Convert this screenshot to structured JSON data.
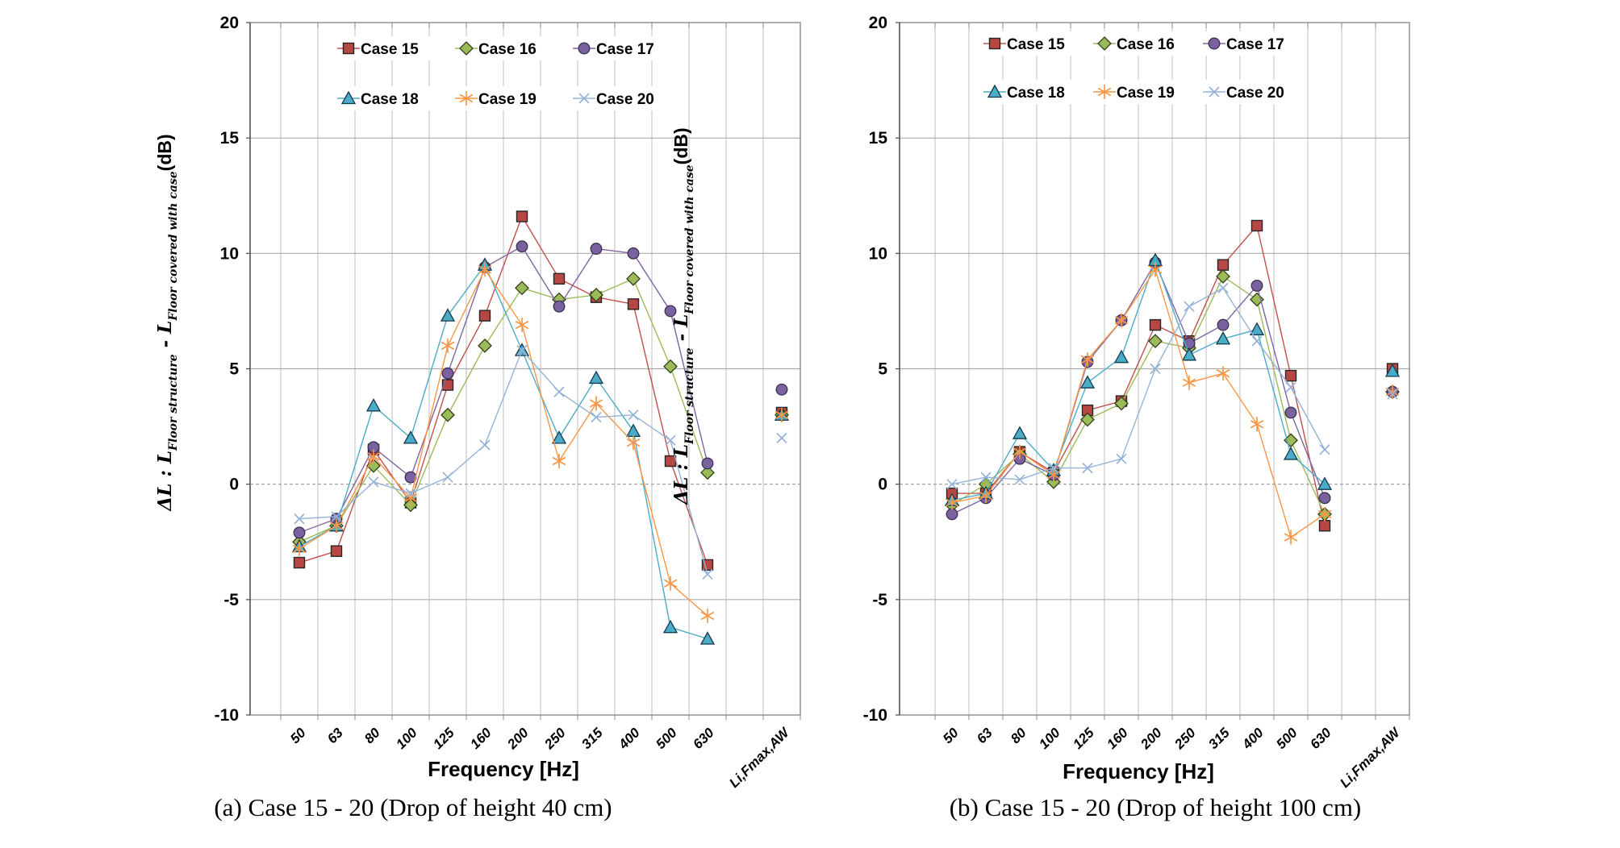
{
  "figure": {
    "background": "#ffffff",
    "caption_a": "(a) Case 15 - 20 (Drop of height 40 cm)",
    "caption_b": "(b) Case 15 - 20 (Drop of height 100 cm)"
  },
  "chart_data": [
    {
      "type": "line",
      "caption": "(a) Case 15 - 20 (Drop of height 40 cm)",
      "xlabel": "Frequency [Hz]",
      "ylabel_parts": {
        "prefix": "ΔL : L",
        "sub1": "Floor structure",
        "mid": " - L",
        "sub2": "Floor covered with case",
        "suffix": "(dB)"
      },
      "ylim": [
        -10,
        20
      ],
      "ytick_step": 5,
      "grid": true,
      "zero_line": "dashed",
      "legend_position": "top-inside",
      "categories": [
        "50",
        "63",
        "80",
        "100",
        "125",
        "160",
        "200",
        "250",
        "315",
        "400",
        "500",
        "630"
      ],
      "li_label": "Li,Fmax,AW",
      "series": [
        {
          "name": "Case 15",
          "marker": "square",
          "color": "#C0504D",
          "fill": "#B84743",
          "edge": "#262626",
          "values": [
            -3.4,
            -2.9,
            1.5,
            -0.8,
            4.3,
            7.3,
            11.6,
            8.9,
            8.1,
            7.8,
            1.0,
            -3.5
          ],
          "li_value": 3.1
        },
        {
          "name": "Case 16",
          "marker": "diamond",
          "color": "#9BBB59",
          "fill": "#9BBB59",
          "edge": "#33401d",
          "values": [
            -2.5,
            -1.8,
            0.8,
            -0.9,
            3.0,
            6.0,
            8.5,
            8.0,
            8.2,
            8.9,
            5.1,
            0.5
          ],
          "li_value": 3.0
        },
        {
          "name": "Case 17",
          "marker": "circle",
          "color": "#8064A2",
          "fill": "#7A62A0",
          "edge": "#3b3050",
          "values": [
            -2.1,
            -1.5,
            1.6,
            0.3,
            4.8,
            9.4,
            10.3,
            7.7,
            10.2,
            10.0,
            7.5,
            0.9
          ],
          "li_value": 4.1
        },
        {
          "name": "Case 18",
          "marker": "triangle",
          "color": "#4BACC6",
          "fill": "#4BACC6",
          "edge": "#16384f",
          "values": [
            -2.7,
            -1.8,
            3.4,
            2.0,
            7.3,
            9.5,
            5.8,
            2.0,
            4.6,
            2.3,
            -6.2,
            -6.7
          ],
          "li_value": 3.0
        },
        {
          "name": "Case 19",
          "marker": "asterisk",
          "color": "#F79646",
          "fill": "none",
          "edge": "#F79646",
          "values": [
            -2.8,
            -1.8,
            1.2,
            -0.6,
            6.0,
            9.3,
            6.9,
            1.0,
            3.5,
            1.8,
            -4.3,
            -5.7
          ],
          "li_value": 3.0
        },
        {
          "name": "Case 20",
          "marker": "x",
          "color": "#95B3D7",
          "fill": "none",
          "edge": "#95B3D7",
          "values": [
            -1.5,
            -1.4,
            0.1,
            -0.4,
            0.3,
            1.7,
            5.8,
            4.0,
            2.9,
            3.0,
            1.9,
            -3.9
          ],
          "li_value": 2.0
        }
      ]
    },
    {
      "type": "line",
      "caption": "(b) Case 15 - 20 (Drop of height 100 cm)",
      "xlabel": "Frequency [Hz]",
      "ylabel_parts": {
        "prefix": "ΔL : L",
        "sub1": "Floor structure",
        "mid": " - L",
        "sub2": "Floor covered with case",
        "suffix": "(dB)"
      },
      "ylim": [
        -10,
        20
      ],
      "ytick_step": 5,
      "grid": true,
      "zero_line": "dashed",
      "legend_position": "top-inside",
      "categories": [
        "50",
        "63",
        "80",
        "100",
        "125",
        "160",
        "200",
        "250",
        "315",
        "400",
        "500",
        "630"
      ],
      "li_label": "Li,Fmax,AW",
      "series": [
        {
          "name": "Case 15",
          "marker": "square",
          "color": "#C0504D",
          "fill": "#B84743",
          "edge": "#262626",
          "values": [
            -0.4,
            -0.4,
            1.4,
            0.5,
            3.2,
            3.6,
            6.9,
            6.2,
            9.5,
            11.2,
            4.7,
            -1.8
          ],
          "li_value": 5.0
        },
        {
          "name": "Case 16",
          "marker": "diamond",
          "color": "#9BBB59",
          "fill": "#9BBB59",
          "edge": "#33401d",
          "values": [
            -0.9,
            0.0,
            1.3,
            0.1,
            2.8,
            3.5,
            6.2,
            5.9,
            9.0,
            8.0,
            1.9,
            -1.3
          ],
          "li_value": 4.0
        },
        {
          "name": "Case 17",
          "marker": "circle",
          "color": "#8064A2",
          "fill": "#7A62A0",
          "edge": "#3b3050",
          "values": [
            -1.3,
            -0.6,
            1.1,
            0.4,
            5.3,
            7.1,
            9.6,
            6.1,
            6.9,
            8.6,
            3.1,
            -0.6
          ],
          "li_value": 4.0
        },
        {
          "name": "Case 18",
          "marker": "triangle",
          "color": "#4BACC6",
          "fill": "#4BACC6",
          "edge": "#16384f",
          "values": [
            -0.7,
            -0.4,
            2.2,
            0.6,
            4.4,
            5.5,
            9.7,
            5.6,
            6.3,
            6.7,
            1.3,
            0.0
          ],
          "li_value": 4.9
        },
        {
          "name": "Case 19",
          "marker": "asterisk",
          "color": "#F79646",
          "fill": "none",
          "edge": "#F79646",
          "values": [
            -0.8,
            -0.5,
            1.4,
            0.4,
            5.4,
            7.1,
            9.3,
            4.4,
            4.8,
            2.6,
            -2.3,
            -1.3
          ],
          "li_value": 4.0
        },
        {
          "name": "Case 20",
          "marker": "x",
          "color": "#95B3D7",
          "fill": "none",
          "edge": "#95B3D7",
          "values": [
            0.0,
            0.3,
            0.2,
            0.7,
            0.7,
            1.1,
            5.0,
            7.7,
            8.5,
            6.2,
            4.2,
            1.5
          ],
          "li_value": 3.9
        }
      ]
    }
  ]
}
